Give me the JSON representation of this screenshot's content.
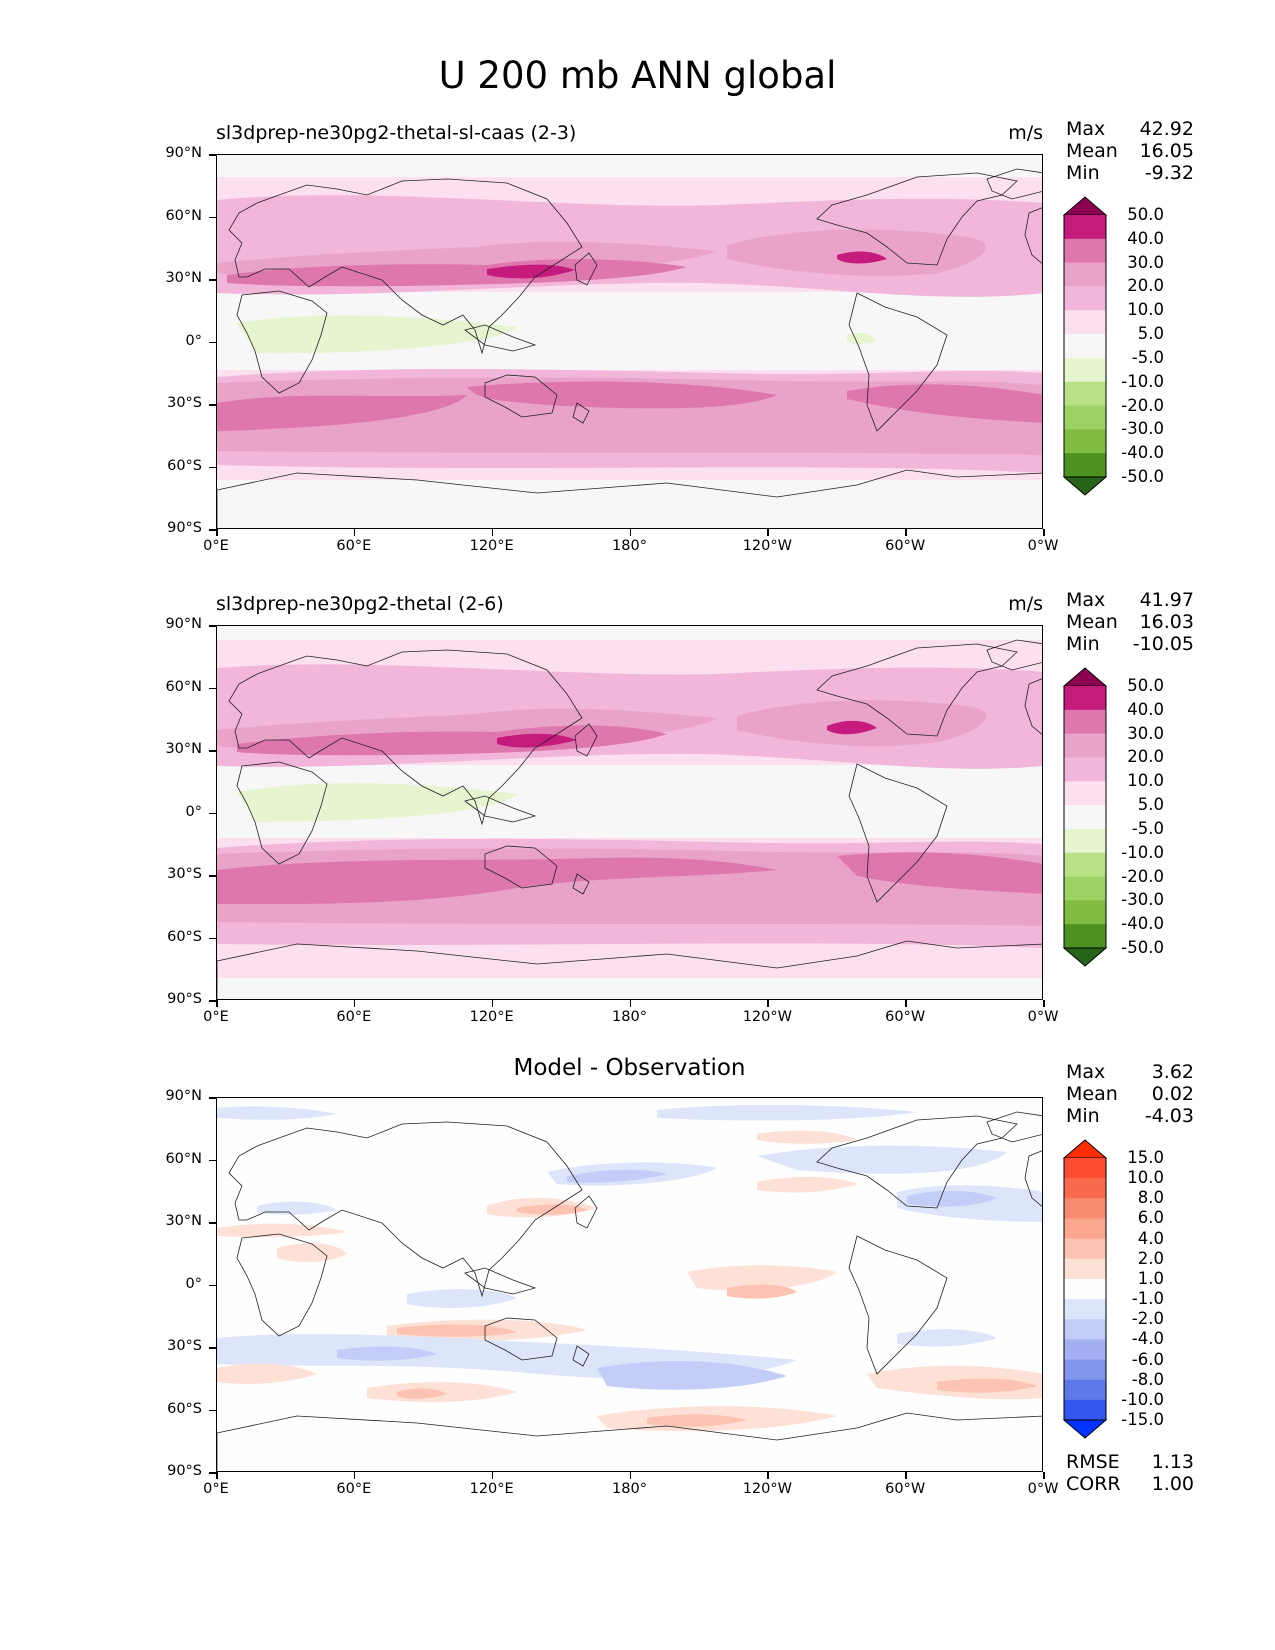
{
  "title": "U 200 mb ANN global",
  "lat_ticks": [
    "90°N",
    "60°N",
    "30°N",
    "0°",
    "30°S",
    "60°S",
    "90°S"
  ],
  "lon_ticks": [
    "0°E",
    "60°E",
    "120°E",
    "180°",
    "120°W",
    "60°W",
    "0°W"
  ],
  "panels": [
    {
      "subtitle_left": "sl3dprep-ne30pg2-thetal-sl-caas (2-3)",
      "subtitle_center": "",
      "units": "m/s",
      "stats": [
        {
          "label": "Max",
          "value": "42.92"
        },
        {
          "label": "Mean",
          "value": "16.05"
        },
        {
          "label": "Min",
          "value": "-9.32"
        }
      ],
      "colorbar": {
        "ticks": [
          "50.0",
          "40.0",
          "30.0",
          "20.0",
          "10.0",
          "5.0",
          "-5.0",
          "-10.0",
          "-20.0",
          "-30.0",
          "-40.0",
          "-50.0"
        ],
        "colors": [
          "#8e0152",
          "#c51b7d",
          "#de77ae",
          "#e9a3c9",
          "#f1b6da",
          "#fde0ef",
          "#f7f7f7",
          "#e6f5d0",
          "#b8e186",
          "#9cd163",
          "#7fbc41",
          "#4d9221",
          "#276419"
        ]
      }
    },
    {
      "subtitle_left": "sl3dprep-ne30pg2-thetal (2-6)",
      "subtitle_center": "",
      "units": "m/s",
      "stats": [
        {
          "label": "Max",
          "value": "41.97"
        },
        {
          "label": "Mean",
          "value": "16.03"
        },
        {
          "label": "Min",
          "value": "-10.05"
        }
      ],
      "colorbar": {
        "ticks": [
          "50.0",
          "40.0",
          "30.0",
          "20.0",
          "10.0",
          "5.0",
          "-5.0",
          "-10.0",
          "-20.0",
          "-30.0",
          "-40.0",
          "-50.0"
        ],
        "colors": [
          "#8e0152",
          "#c51b7d",
          "#de77ae",
          "#e9a3c9",
          "#f1b6da",
          "#fde0ef",
          "#f7f7f7",
          "#e6f5d0",
          "#b8e186",
          "#9cd163",
          "#7fbc41",
          "#4d9221",
          "#276419"
        ]
      }
    },
    {
      "subtitle_left": "",
      "subtitle_center": "Model - Observation",
      "units": "",
      "stats": [
        {
          "label": "Max",
          "value": "3.62"
        },
        {
          "label": "Mean",
          "value": "0.02"
        },
        {
          "label": "Min",
          "value": "-4.03"
        }
      ],
      "extra_stats": [
        {
          "label": "RMSE",
          "value": "1.13"
        },
        {
          "label": "CORR",
          "value": "1.00"
        }
      ],
      "colorbar": {
        "ticks": [
          "15.0",
          "10.0",
          "8.0",
          "6.0",
          "4.0",
          "2.0",
          "1.0",
          "-1.0",
          "-2.0",
          "-4.0",
          "-6.0",
          "-8.0",
          "-10.0",
          "-15.0"
        ],
        "colors": [
          "#ff2d00",
          "#fc4d33",
          "#f96b4f",
          "#f98b6e",
          "#fba78f",
          "#fdc3b2",
          "#fde1d6",
          "#fefefe",
          "#dde5fb",
          "#c3cdf8",
          "#a3b0f2",
          "#8296ee",
          "#5f78ea",
          "#3456f0",
          "#0033ff"
        ]
      }
    }
  ]
}
